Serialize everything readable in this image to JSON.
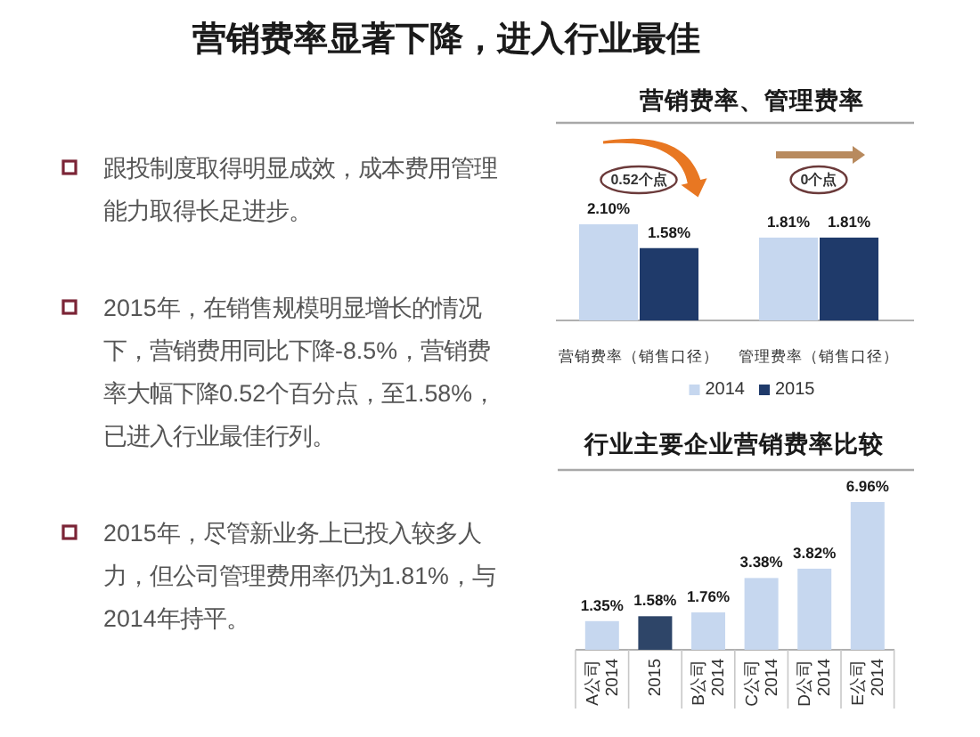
{
  "chart_data": [
    {
      "type": "other",
      "title": "营销费率显著下降，进入行业最佳",
      "annotations": [
        "跟投制度取得明显成效，成本费用管理能力取得长足进步。",
        "2015年，在销售规模明显增长的情况下，营销费用同比下降-8.5%，营销费率大幅下降0.52个百分点，至1.58%，已进入行业最佳行列。",
        "2015年，尽管新业务上已投入较多人力，但公司管理费用率仍为1.81%，与2014年持平。"
      ]
    },
    {
      "type": "bar",
      "title": "营销费率、管理费率",
      "categories": [
        "营销费率（销售口径）",
        "管理费率（销售口径）"
      ],
      "series": [
        {
          "name": "2014",
          "color": "#c6d7ef",
          "values": [
            2.1,
            1.81
          ],
          "value_labels": [
            "2.10%",
            "1.81%"
          ]
        },
        {
          "name": "2015",
          "color": "#1f3a6a",
          "values": [
            1.58,
            1.81
          ],
          "value_labels": [
            "1.58%",
            "1.81%"
          ]
        }
      ],
      "annotations": [
        "0.52个点",
        "0个点"
      ],
      "legend": "bottom"
    },
    {
      "type": "bar",
      "title": "行业主要企业营销费率比较",
      "categories": [
        "A公司 2014",
        "2015",
        "B公司 2014",
        "C公司 2014",
        "D公司 2014",
        "E公司 2014"
      ],
      "values": [
        1.35,
        1.58,
        1.76,
        3.38,
        3.82,
        6.96
      ],
      "colors": [
        "#c6d7ef",
        "#2e4568",
        "#c6d7ef",
        "#c6d7ef",
        "#c6d7ef",
        "#c6d7ef"
      ],
      "value_labels": [
        "1.35%",
        "1.58%",
        "1.76%",
        "3.38%",
        "3.82%",
        "6.96%"
      ]
    }
  ]
}
